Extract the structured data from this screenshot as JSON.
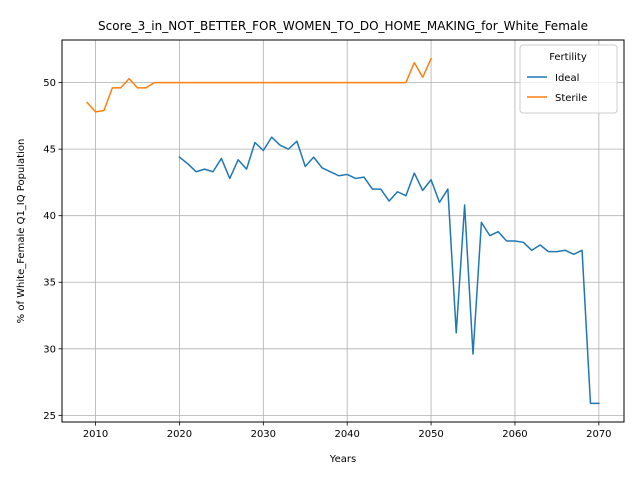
{
  "chart_data": {
    "type": "line",
    "title": "Score_3_in_NOT_BETTER_FOR_WOMEN_TO_DO_HOME_MAKING_for_White_Female",
    "xlabel": "Years",
    "ylabel": "% of White_Female Q1_IQ Population",
    "xlim": [
      2006,
      2073
    ],
    "ylim": [
      24.5,
      53.2
    ],
    "xticks": [
      2010,
      2020,
      2030,
      2040,
      2050,
      2060,
      2070
    ],
    "yticks": [
      25,
      30,
      35,
      40,
      45,
      50
    ],
    "grid": true,
    "legend": {
      "title": "Fertility",
      "placement": "top-right"
    },
    "series": [
      {
        "name": "Ideal",
        "color": "#1f77b4",
        "x": [
          2020,
          2021,
          2022,
          2023,
          2024,
          2025,
          2026,
          2027,
          2028,
          2029,
          2030,
          2031,
          2032,
          2033,
          2034,
          2035,
          2036,
          2037,
          2038,
          2039,
          2040,
          2041,
          2042,
          2043,
          2044,
          2045,
          2046,
          2047,
          2048,
          2049,
          2050,
          2051,
          2052,
          2053,
          2054,
          2055,
          2056,
          2057,
          2058,
          2059,
          2060,
          2061,
          2062,
          2063,
          2064,
          2065,
          2066,
          2067,
          2068,
          2069,
          2070
        ],
        "y": [
          44.4,
          43.9,
          43.3,
          43.5,
          43.3,
          44.3,
          42.8,
          44.2,
          43.5,
          45.5,
          44.9,
          45.9,
          45.3,
          45.0,
          45.6,
          43.7,
          44.4,
          43.6,
          43.3,
          43.0,
          43.1,
          42.8,
          42.9,
          42.0,
          42.0,
          41.1,
          41.8,
          41.5,
          43.2,
          41.9,
          42.7,
          41.0,
          42.0,
          31.2,
          40.8,
          29.6,
          39.5,
          38.5,
          38.8,
          38.1,
          38.1,
          38.0,
          37.4,
          37.8,
          37.3,
          37.3,
          37.4,
          37.1,
          37.4,
          25.9,
          25.9
        ]
      },
      {
        "name": "Sterile",
        "color": "#ff7f0e",
        "x": [
          2009,
          2010,
          2011,
          2012,
          2013,
          2014,
          2015,
          2016,
          2017,
          2018,
          2019,
          2020,
          2021,
          2022,
          2023,
          2024,
          2025,
          2026,
          2027,
          2028,
          2029,
          2030,
          2031,
          2032,
          2033,
          2034,
          2035,
          2036,
          2037,
          2038,
          2039,
          2040,
          2041,
          2042,
          2043,
          2044,
          2045,
          2046,
          2047,
          2048,
          2049,
          2050
        ],
        "y": [
          48.5,
          47.8,
          47.9,
          49.6,
          49.6,
          50.3,
          49.6,
          49.6,
          50.0,
          50.0,
          50.0,
          50.0,
          50.0,
          50.0,
          50.0,
          50.0,
          50.0,
          50.0,
          50.0,
          50.0,
          50.0,
          50.0,
          50.0,
          50.0,
          50.0,
          50.0,
          50.0,
          50.0,
          50.0,
          50.0,
          50.0,
          50.0,
          50.0,
          50.0,
          50.0,
          50.0,
          50.0,
          50.0,
          50.0,
          51.5,
          50.4,
          51.8
        ]
      }
    ]
  }
}
